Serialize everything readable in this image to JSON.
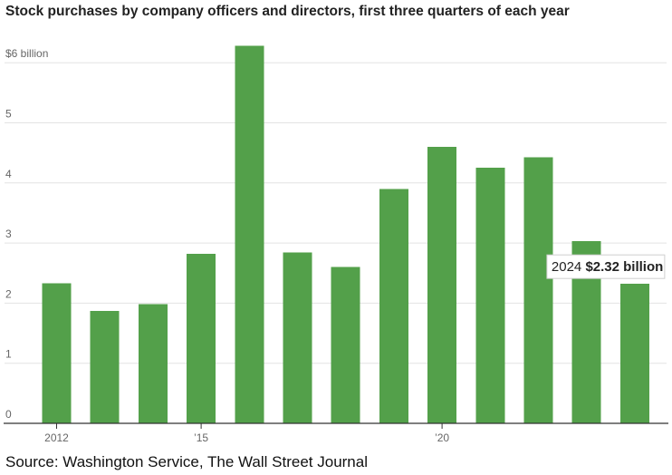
{
  "chart_data": {
    "type": "bar",
    "title": "Stock purchases by company officers and directors, first three quarters of each year",
    "xlabel": "",
    "ylabel": "",
    "categories": [
      "2012",
      "2013",
      "2014",
      "2015",
      "2016",
      "2017",
      "2018",
      "2019",
      "2020",
      "2021",
      "2022",
      "2023",
      "2024"
    ],
    "values": [
      2.33,
      1.87,
      1.98,
      2.82,
      6.28,
      2.84,
      2.6,
      3.9,
      4.6,
      4.25,
      4.43,
      3.03,
      2.32
    ],
    "ylim": [
      0,
      6
    ],
    "yticks": [
      0,
      1,
      2,
      3,
      4,
      5,
      6
    ],
    "ytick_labels": [
      "0",
      "1",
      "2",
      "3",
      "4",
      "5",
      "$6 billion"
    ],
    "xtick_labels": [
      {
        "category": "2012",
        "label": "2012"
      },
      {
        "category": "2015",
        "label": "’15"
      },
      {
        "category": "2020",
        "label": "’20"
      }
    ],
    "grid": true,
    "bar_color": "#53a04a",
    "annotation": {
      "category": "2024",
      "year_text": "2024",
      "value_text": "$2.32 billion"
    }
  },
  "source": "Source: Washington Service, The Wall Street Journal"
}
